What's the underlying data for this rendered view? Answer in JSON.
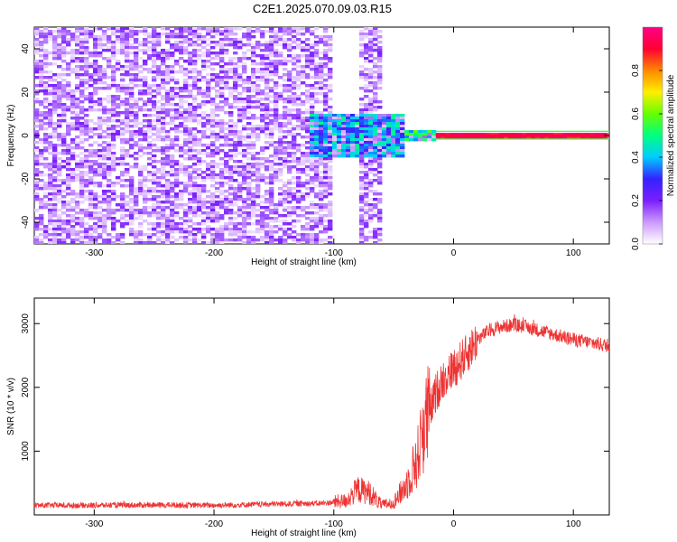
{
  "title": "C2E1.2025.070.09.03.R15",
  "chart_data": [
    {
      "type": "heatmap",
      "xlabel": "Height of straight line (km)",
      "ylabel": "Frequency (Hz)",
      "xlim": [
        -350,
        130
      ],
      "ylim": [
        -50,
        50
      ],
      "xticks": [
        -300,
        -200,
        -100,
        0,
        100
      ],
      "yticks": [
        -40,
        -20,
        0,
        20,
        40
      ],
      "colorbar": {
        "label": "Normalized spectral amplitude",
        "range": [
          0.0,
          1.0
        ],
        "ticks": [
          0.0,
          0.2,
          0.4,
          0.6,
          0.8
        ],
        "colors": [
          "#ffffff",
          "#cc99ff",
          "#7a1fff",
          "#3322ff",
          "#00ccff",
          "#00ff80",
          "#66ff00",
          "#ffee00",
          "#ff8800",
          "#ff0033",
          "#ff0088"
        ]
      },
      "features": [
        {
          "x": [
            -350,
            -100
          ],
          "y": [
            -50,
            50
          ],
          "amplitude": 0.15
        },
        {
          "x": [
            -80,
            -60
          ],
          "y": [
            -50,
            50
          ],
          "amplitude": 0.08
        },
        {
          "x": [
            -120,
            -40
          ],
          "y": [
            -10,
            10
          ],
          "amplitude": 0.35
        },
        {
          "x": [
            -40,
            -15
          ],
          "y": [
            -3,
            3
          ],
          "amplitude": 0.45
        },
        {
          "x": [
            -15,
            130
          ],
          "y": [
            -1,
            1
          ],
          "amplitude": 0.95
        }
      ]
    },
    {
      "type": "line",
      "xlabel": "Height of straight line (km)",
      "ylabel": "SNR (10 * v/v)",
      "xlim": [
        -350,
        130
      ],
      "ylim": [
        0,
        3400
      ],
      "xticks": [
        -300,
        -200,
        -100,
        0,
        100
      ],
      "yticks": [
        1000,
        2000,
        3000
      ],
      "color": "#ee3333",
      "profile": {
        "x": [
          -350,
          -300,
          -250,
          -200,
          -150,
          -110,
          -90,
          -80,
          -70,
          -60,
          -50,
          -40,
          -30,
          -25,
          -20,
          -15,
          -10,
          0,
          10,
          20,
          30,
          40,
          50,
          60,
          80,
          100,
          130
        ],
        "y": [
          150,
          150,
          155,
          150,
          170,
          180,
          220,
          400,
          350,
          150,
          200,
          450,
          900,
          1400,
          1600,
          1900,
          2100,
          2300,
          2500,
          2750,
          2900,
          2950,
          2980,
          2950,
          2850,
          2750,
          2650
        ]
      }
    }
  ]
}
